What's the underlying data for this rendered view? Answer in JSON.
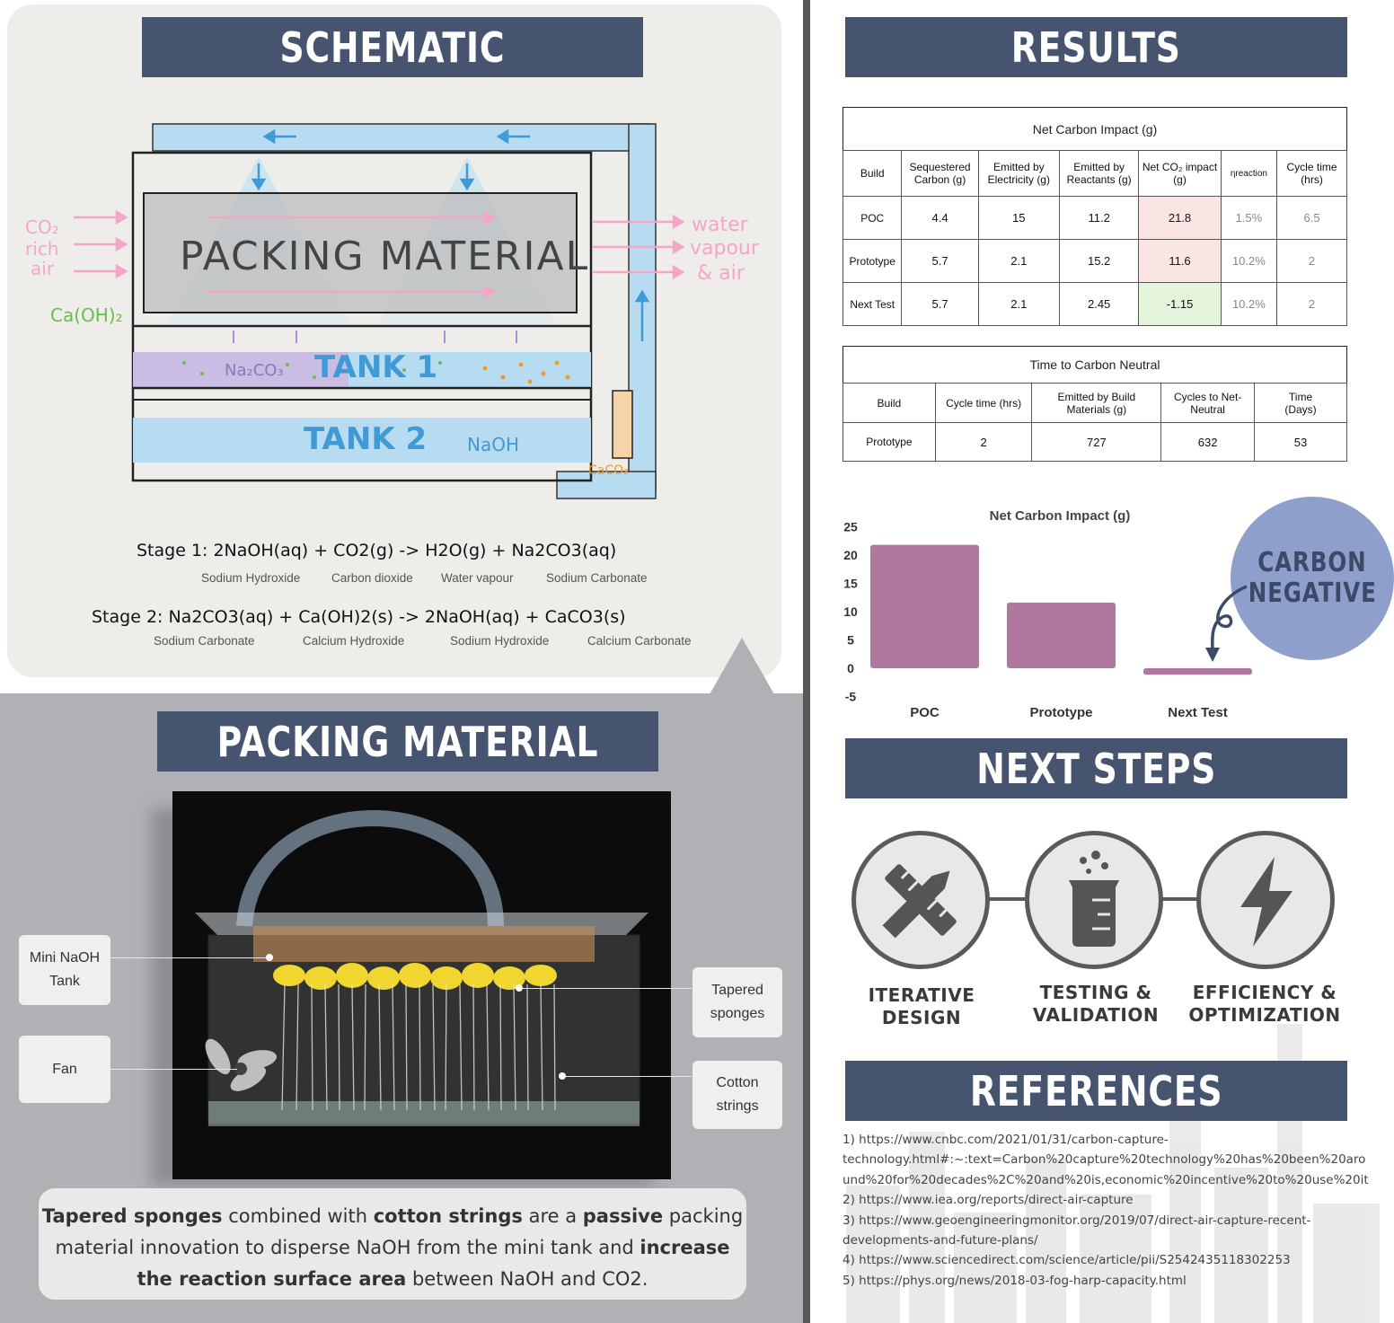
{
  "banners": {
    "schematic": "SCHEMATIC",
    "packing": "PACKING MATERIAL",
    "results": "RESULTS",
    "next_steps": "NEXT STEPS",
    "references": "REFERENCES"
  },
  "schematic": {
    "co2_label": [
      "CO₂",
      "rich",
      "air"
    ],
    "water_label": [
      "water",
      "vapour",
      "& air"
    ],
    "caoh_label": "Ca(OH)₂",
    "packing_label": "PACKING MATERIAL",
    "na2co3_label": "Na₂CO₃",
    "tank1_label": "TANK 1",
    "tank2_label": "TANK 2",
    "naoh_label": "NaOH",
    "caco3_label": "CaCO₃"
  },
  "equations": {
    "stage1": "Stage 1:  2NaOH(aq)  +  CO2(g)  -> H2O(g)  +  Na2CO3(aq)",
    "stage1_labels": [
      "Sodium Hydroxide",
      "Carbon dioxide",
      "Water vapour",
      "Sodium Carbonate"
    ],
    "stage2": "Stage 2:  Na2CO3(aq)  +  Ca(OH)2(s)  -> 2NaOH(aq)  +  CaCO3(s)",
    "stage2_labels": [
      "Sodium Carbonate",
      "Calcium Hydroxide",
      "Sodium Hydroxide",
      "Calcium Carbonate"
    ]
  },
  "packing": {
    "callouts": {
      "mini_tank": "Mini NaOH Tank",
      "fan": "Fan",
      "sponges": "Tapered sponges",
      "strings": "Cotton strings"
    },
    "description": {
      "p1": "Tapered sponges",
      "p2": " combined with ",
      "p3": "cotton strings",
      "p4": " are a ",
      "p5": "passive",
      "p6": " packing material innovation to disperse NaOH from the mini tank and ",
      "p7": "increase the reaction surface area",
      "p8": " between NaOH and CO2."
    }
  },
  "net_table": {
    "title": "Net Carbon Impact (g)",
    "headers": [
      "Build",
      "Sequestered Carbon (g)",
      "Emitted by Electricity (g)",
      "Emitted by Reactants (g)",
      "Net CO₂ impact (g)",
      "ηreaction",
      "Cycle time (hrs)"
    ],
    "rows": [
      [
        "POC",
        "4.4",
        "15",
        "11.2",
        "21.8",
        "1.5%",
        "6.5"
      ],
      [
        "Prototype",
        "5.7",
        "2.1",
        "15.2",
        "11.6",
        "10.2%",
        "2"
      ],
      [
        "Next Test",
        "5.7",
        "2.1",
        "2.45",
        "-1.15",
        "10.2%",
        "2"
      ]
    ],
    "net_colors": [
      "#fbe4e4",
      "#fbe4e4",
      "#e3f3dc"
    ]
  },
  "neutral_table": {
    "title": "Time to Carbon Neutral",
    "headers": [
      "Build",
      "Cycle time (hrs)",
      "Emitted by Build Materials (g)",
      "Cycles to Net-Neutral",
      "Time (Days)"
    ],
    "rows": [
      [
        "Prototype",
        "2",
        "727",
        "632",
        "53"
      ]
    ]
  },
  "chart_data": {
    "type": "bar",
    "title": "Net Carbon Impact (g)",
    "categories": [
      "POC",
      "Prototype",
      "Next Test"
    ],
    "values": [
      21.8,
      11.6,
      -1.15
    ],
    "yticks": [
      "25",
      "20",
      "15",
      "10",
      "5",
      "0",
      "-5"
    ],
    "ylim": [
      -5,
      25
    ],
    "bar_color": "#b0789e",
    "xlabel": "",
    "ylabel": ""
  },
  "badge": {
    "line1": "CARBON",
    "line2": "NEGATIVE"
  },
  "next_steps": {
    "items": [
      {
        "label1": "ITERATIVE",
        "label2": "DESIGN",
        "icon": "ruler-pencil-icon"
      },
      {
        "label1": "TESTING &",
        "label2": "VALIDATION",
        "icon": "beaker-icon"
      },
      {
        "label1": "EFFICIENCY &",
        "label2": "OPTIMIZATION",
        "icon": "lightning-icon"
      }
    ]
  },
  "references": [
    "1) https://www.cnbc.com/2021/01/31/carbon-capture-",
    "technology.html#:~:text=Carbon%20capture%20technology%20has%20been%20aro",
    "und%20for%20decades%2C%20and%20is,economic%20incentive%20to%20use%20it",
    "2) https://www.iea.org/reports/direct-air-capture",
    "3) https://www.geoengineeringmonitor.org/2019/07/direct-air-capture-recent-",
    "developments-and-future-plans/",
    "4) https://www.sciencedirect.com/science/article/pii/S2542435118302253",
    "5) https://phys.org/news/2018-03-fog-harp-capacity.html"
  ]
}
